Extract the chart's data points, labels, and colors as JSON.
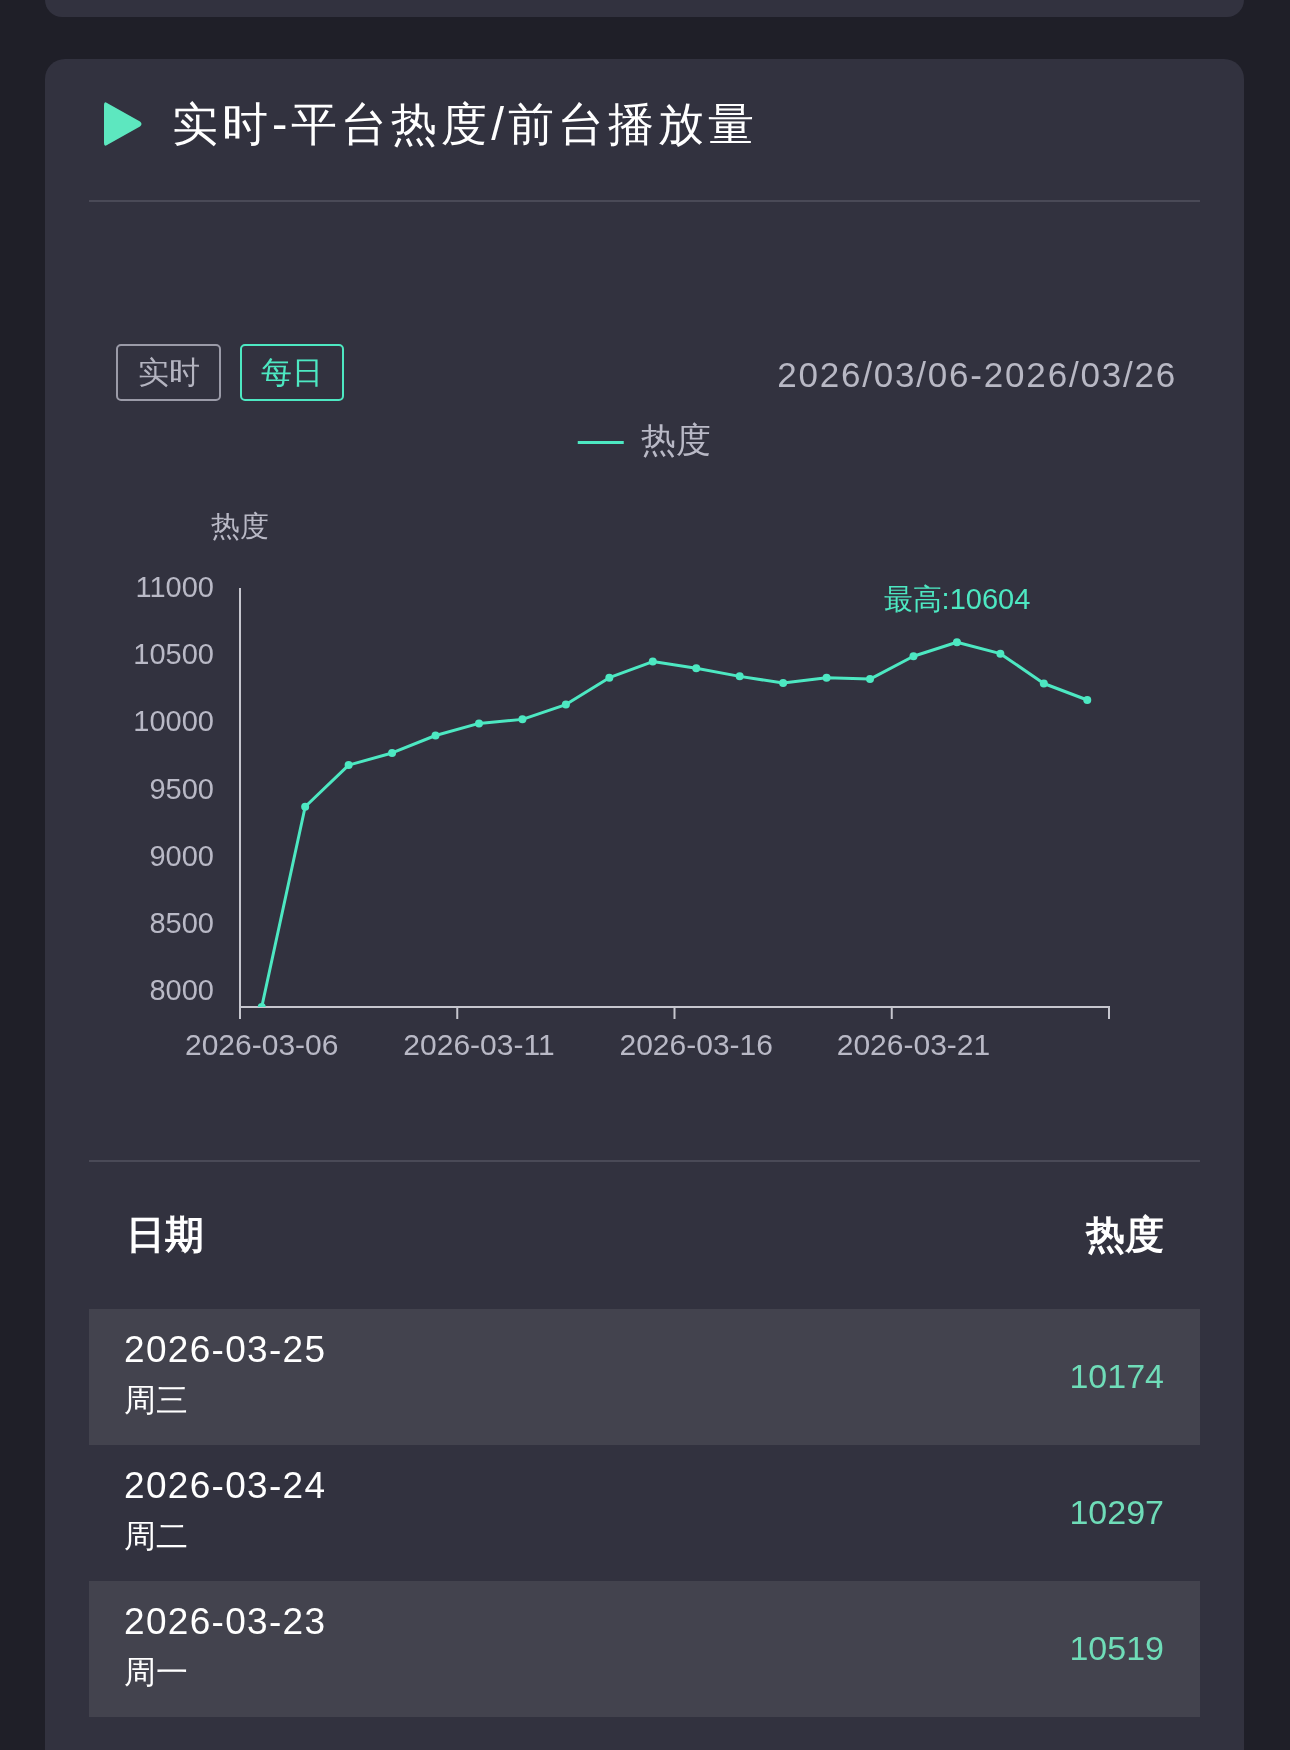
{
  "chart_data": [
    {
      "type": "line",
      "title": "实时-平台热度/前台播放量",
      "subtitle": "2026/03/06-2026/03/26",
      "ylabel": "热度",
      "categories": [
        "2026-03-06",
        null,
        null,
        null,
        null,
        "2026-03-11",
        null,
        null,
        null,
        null,
        "2026-03-16",
        null,
        null,
        null,
        null,
        "2026-03-21",
        null,
        null,
        null,
        null
      ],
      "series": [
        {
          "name": "热度",
          "color": "#4de8c2",
          "values": [
            7890,
            9380,
            9690,
            9780,
            9910,
            10000,
            10030,
            10140,
            10340,
            10460,
            10410,
            10350,
            10300,
            10340,
            10330,
            10500,
            10604,
            10519,
            10297,
            10174
          ]
        }
      ],
      "ylim": [
        7890,
        11000
      ],
      "yticks": [
        8000,
        8500,
        9000,
        9500,
        10000,
        10500,
        11000
      ],
      "legend": "top",
      "marker": "circle",
      "line_style": "solid",
      "annotations": [
        "实时",
        "每日",
        {
          "text": "最高:10604",
          "y": 10604
        }
      ]
    },
    {
      "type": "other",
      "annotations": [
        "日期",
        "热度",
        "2026-03-25",
        "周三",
        "10174",
        "2026-03-24",
        "周二",
        "10297",
        "2026-03-23",
        "周一",
        "10519"
      ]
    }
  ]
}
